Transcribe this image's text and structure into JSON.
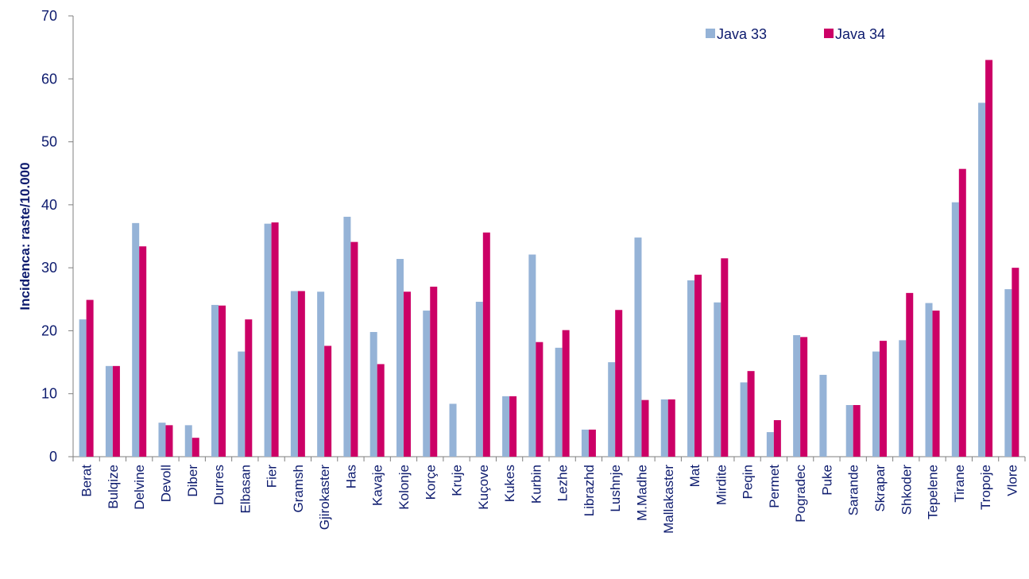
{
  "chart_data": {
    "type": "bar",
    "ylabel": "Incidenca: raste/10.000",
    "xlabel": "",
    "ylim": [
      0,
      70
    ],
    "yticks": [
      0,
      10,
      20,
      30,
      40,
      50,
      60,
      70
    ],
    "grid": false,
    "legend_position": "top-right",
    "categories": [
      "Berat",
      "Bulqize",
      "Delvine",
      "Devoll",
      "Diber",
      "Durres",
      "Elbasan",
      "Fier",
      "Gramsh",
      "Gjirokaster",
      "Has",
      "Kavaje",
      "Kolonje",
      "Korçe",
      "Kruje",
      "Kuçove",
      "Kukes",
      "Kurbin",
      "Lezhe",
      "Librazhd",
      "Lushnje",
      "M.Madhe",
      "Mallakaster",
      "Mat",
      "Mirdite",
      "Peqin",
      "Permet",
      "Pogradec",
      "Puke",
      "Sarande",
      "Skrapar",
      "Shkoder",
      "Tepelene",
      "Tirane",
      "Tropoje",
      "Vlore"
    ],
    "series": [
      {
        "name": "Java 33",
        "color": "#95b3d7",
        "values": [
          21.8,
          14.4,
          37.1,
          5.4,
          5.0,
          24.1,
          16.7,
          37.0,
          26.3,
          26.2,
          38.1,
          19.8,
          31.4,
          23.2,
          8.4,
          24.6,
          9.6,
          32.1,
          17.3,
          4.3,
          15.0,
          34.8,
          9.1,
          28.0,
          24.5,
          11.8,
          3.9,
          19.3,
          13.0,
          8.2,
          16.7,
          18.5,
          24.4,
          40.4,
          56.2,
          26.6
        ]
      },
      {
        "name": "Java 34",
        "color": "#cc0066",
        "values": [
          24.9,
          14.4,
          33.4,
          5.0,
          3.0,
          24.0,
          21.8,
          37.2,
          26.3,
          17.6,
          34.1,
          14.7,
          26.2,
          27.0,
          0,
          35.6,
          9.6,
          18.2,
          20.1,
          4.3,
          23.3,
          9.0,
          9.1,
          28.9,
          31.5,
          13.6,
          5.8,
          19.0,
          0,
          8.2,
          18.4,
          26.0,
          23.2,
          45.7,
          63.0,
          30.0
        ]
      }
    ]
  }
}
